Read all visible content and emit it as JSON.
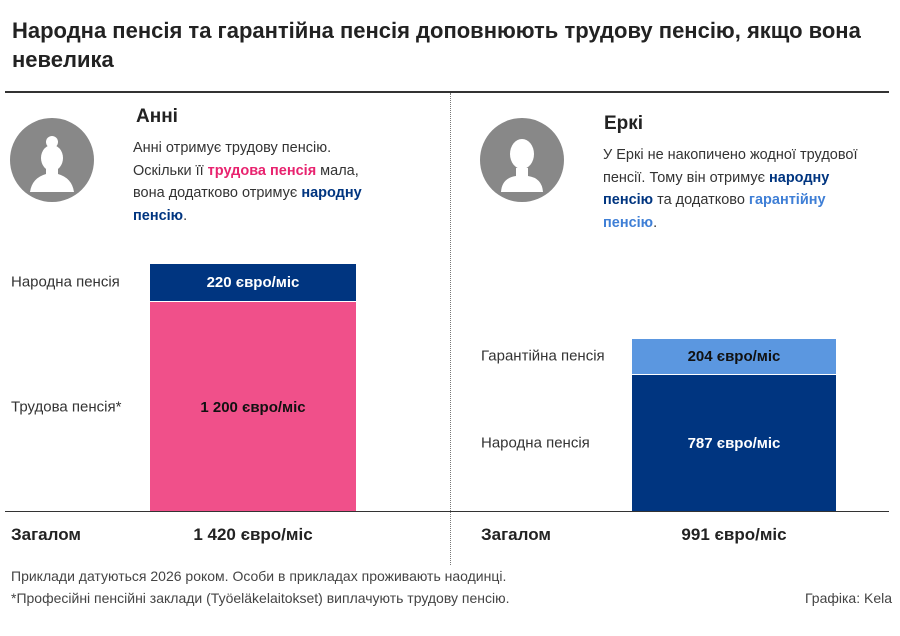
{
  "title": "Народна пенсія та гарантійна пенсія доповнюють трудову пенсію, якщо вона невелика",
  "colors": {
    "national": "#003580",
    "earnings": "#f0508a",
    "guarantee": "#5b97e0",
    "avatar": "#888888"
  },
  "people": [
    {
      "name": "Анні",
      "icon": "female-avatar-icon",
      "text": [
        {
          "t": "Анні отримує трудову пенсію. Оскільки її ",
          "c": ""
        },
        {
          "t": "трудова пенсія",
          "c": "pink"
        },
        {
          "t": " мала, вона додатково отримує ",
          "c": ""
        },
        {
          "t": "народну пенсію",
          "c": "navy"
        },
        {
          "t": ".",
          "c": ""
        }
      ],
      "total_label": "Загалом",
      "total_value": "1 420 євро/міс"
    },
    {
      "name": "Еркі",
      "icon": "male-avatar-icon",
      "text": [
        {
          "t": "У Еркі не накопичено жодної трудової пенсії. Тому він отримує ",
          "c": ""
        },
        {
          "t": "народну пенсію",
          "c": "navy"
        },
        {
          "t": " та додатково ",
          "c": ""
        },
        {
          "t": "гарантійну пенсію",
          "c": "light"
        },
        {
          "t": ".",
          "c": ""
        }
      ],
      "total_label": "Загалом",
      "total_value": "991 євро/міс"
    }
  ],
  "chart_data": {
    "type": "bar",
    "stacked": true,
    "unit": "євро/міс",
    "categories": [
      "Анні",
      "Еркі"
    ],
    "stacks": [
      [
        {
          "name": "Трудова пенсія*",
          "value": 1200,
          "label": "1 200 євро/міс",
          "color": "#f0508a",
          "text_color": "#111"
        },
        {
          "name": "Народна пенсія",
          "value": 220,
          "label": "220 євро/міс",
          "color": "#003580",
          "text_color": "#fff"
        }
      ],
      [
        {
          "name": "Народна пенсія",
          "value": 787,
          "label": "787 євро/міс",
          "color": "#003580",
          "text_color": "#fff"
        },
        {
          "name": "Гарантійна пенсія",
          "value": 204,
          "label": "204 євро/міс",
          "color": "#5b97e0",
          "text_color": "#111"
        }
      ]
    ],
    "totals": [
      1420,
      991
    ]
  },
  "footer": {
    "note1": "Приклади датуються 2026 роком. Особи в прикладах проживають наодинці.",
    "note2": "*Професійні пенсійні заклади (Työeläkelaitokset) виплачують трудову пенсію.",
    "credit": "Графіка: Kela"
  }
}
